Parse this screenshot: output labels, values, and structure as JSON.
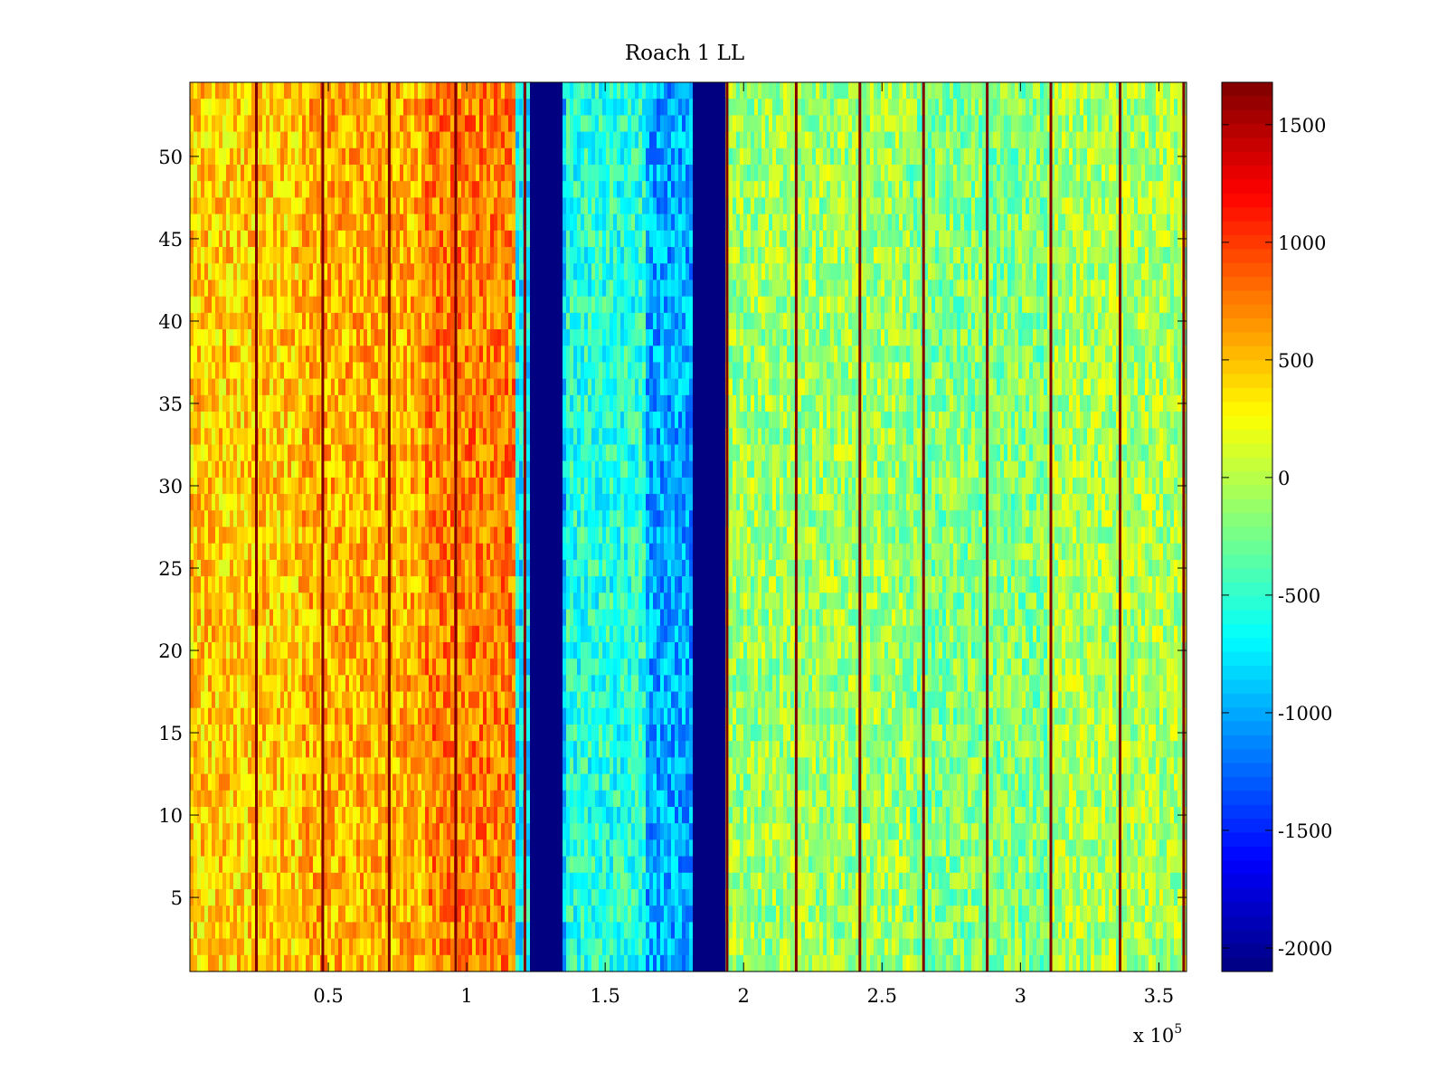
{
  "chart_data": {
    "type": "heatmap",
    "title": "Roach 1 LL",
    "xlabel": "",
    "ylabel": "",
    "x_multiplier_label": "x 10",
    "x_multiplier_exponent": "5",
    "xlim": [
      0,
      360000
    ],
    "ylim": [
      0.5,
      54.5
    ],
    "x_ticks": [
      {
        "value": 50000,
        "label": "0.5"
      },
      {
        "value": 100000,
        "label": "1"
      },
      {
        "value": 150000,
        "label": "1.5"
      },
      {
        "value": 200000,
        "label": "2"
      },
      {
        "value": 250000,
        "label": "2.5"
      },
      {
        "value": 300000,
        "label": "3"
      },
      {
        "value": 350000,
        "label": "3.5"
      }
    ],
    "y_ticks": [
      {
        "value": 5,
        "label": "5"
      },
      {
        "value": 10,
        "label": "10"
      },
      {
        "value": 15,
        "label": "15"
      },
      {
        "value": 20,
        "label": "20"
      },
      {
        "value": 25,
        "label": "25"
      },
      {
        "value": 30,
        "label": "30"
      },
      {
        "value": 35,
        "label": "35"
      },
      {
        "value": 40,
        "label": "40"
      },
      {
        "value": 45,
        "label": "45"
      },
      {
        "value": 50,
        "label": "50"
      }
    ],
    "rows": 54,
    "colormap": "jet",
    "clim": [
      -2100,
      1680
    ],
    "colorbar_ticks": [
      {
        "value": 1500,
        "label": "1500"
      },
      {
        "value": 1000,
        "label": "1000"
      },
      {
        "value": 500,
        "label": "500"
      },
      {
        "value": 0,
        "label": "0"
      },
      {
        "value": -500,
        "label": "-500"
      },
      {
        "value": -1000,
        "label": "-1000"
      },
      {
        "value": -1500,
        "label": "-1500"
      },
      {
        "value": -2000,
        "label": "-2000"
      }
    ],
    "column_segments": [
      {
        "x_start": 0,
        "x_end": 40000,
        "mean_value": 450
      },
      {
        "x_start": 40000,
        "x_end": 85000,
        "mean_value": 550
      },
      {
        "x_start": 85000,
        "x_end": 118000,
        "mean_value": 750
      },
      {
        "x_start": 118000,
        "x_end": 123000,
        "mean_value": -700
      },
      {
        "x_start": 123000,
        "x_end": 134000,
        "mean_value": -2100
      },
      {
        "x_start": 134000,
        "x_end": 136000,
        "mean_value": -900
      },
      {
        "x_start": 136000,
        "x_end": 165000,
        "mean_value": -550
      },
      {
        "x_start": 165000,
        "x_end": 181000,
        "mean_value": -1000
      },
      {
        "x_start": 181000,
        "x_end": 193000,
        "mean_value": -2100
      },
      {
        "x_start": 193000,
        "x_end": 260000,
        "mean_value": -100
      },
      {
        "x_start": 260000,
        "x_end": 310000,
        "mean_value": -200
      },
      {
        "x_start": 310000,
        "x_end": 360000,
        "mean_value": -50
      }
    ],
    "spike_columns_x": [
      24000,
      48000,
      72000,
      96000,
      121000,
      194000,
      219000,
      242000,
      265000,
      288000,
      311000,
      336000,
      359000
    ]
  }
}
